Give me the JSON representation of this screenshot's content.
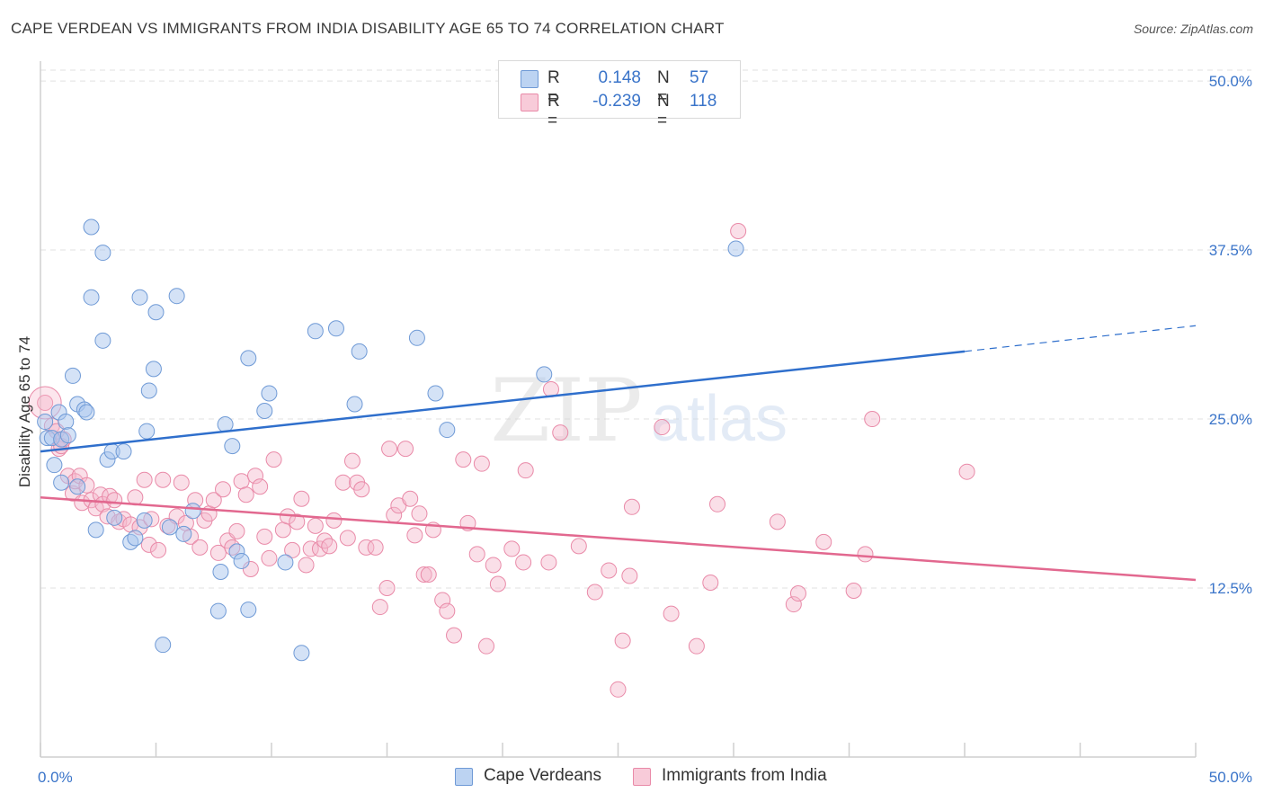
{
  "title": "CAPE VERDEAN VS IMMIGRANTS FROM INDIA DISABILITY AGE 65 TO 74 CORRELATION CHART",
  "source": "Source: ZipAtlas.com",
  "watermark": {
    "zip": "ZIP",
    "atlas": "atlas"
  },
  "colors": {
    "blue_fill": "#a9c6ee",
    "blue_stroke": "#6f9ad6",
    "blue_line": "#2f6fcc",
    "pink_fill": "#f5b8cb",
    "pink_stroke": "#e98aa8",
    "pink_line": "#e2688f",
    "tick_label": "#3a74c9",
    "grid": "#e0e0e0"
  },
  "legend": {
    "rows": [
      {
        "r_label": "R =",
        "r_value": "0.148",
        "n_label": "N =",
        "n_value": "57"
      },
      {
        "r_label": "R =",
        "r_value": "-0.239",
        "n_label": "N =",
        "n_value": "118"
      }
    ]
  },
  "bottom_legend": [
    "Cape Verdeans",
    "Immigrants from India"
  ],
  "chart_data": {
    "type": "scatter",
    "title": "CAPE VERDEAN VS IMMIGRANTS FROM INDIA DISABILITY AGE 65 TO 74 CORRELATION CHART",
    "xlabel": "",
    "ylabel": "Disability Age 65 to 74",
    "xlim": [
      0,
      50
    ],
    "ylim": [
      0,
      52
    ],
    "x_tick_labels": [
      {
        "value": 0,
        "label": "0.0%"
      },
      {
        "value": 50,
        "label": "50.0%"
      }
    ],
    "y_tick_labels": [
      {
        "value": 12.5,
        "label": "12.5%"
      },
      {
        "value": 25,
        "label": "25.0%"
      },
      {
        "value": 37.5,
        "label": "37.5%"
      },
      {
        "value": 50,
        "label": "50.0%"
      }
    ],
    "grid": true,
    "legend_position": "top-center",
    "series": [
      {
        "name": "Cape Verdeans",
        "color": "#a9c6ee",
        "trend": {
          "x0": 0,
          "y0": 22.6,
          "x1": 40,
          "y1": 30.0,
          "dashed_to_x": 50,
          "dashed_to_y": 31.9
        },
        "points": [
          [
            0.3,
            23.6
          ],
          [
            0.5,
            23.6
          ],
          [
            0.6,
            21.6
          ],
          [
            0.8,
            25.5
          ],
          [
            0.9,
            23.5
          ],
          [
            0.9,
            20.3
          ],
          [
            1.1,
            24.8
          ],
          [
            1.2,
            23.8
          ],
          [
            1.4,
            28.2
          ],
          [
            1.6,
            26.1
          ],
          [
            1.6,
            20.0
          ],
          [
            1.9,
            25.7
          ],
          [
            2.0,
            25.5
          ],
          [
            2.2,
            39.2
          ],
          [
            2.2,
            34.0
          ],
          [
            2.4,
            16.8
          ],
          [
            2.7,
            37.3
          ],
          [
            2.7,
            30.8
          ],
          [
            2.9,
            22.0
          ],
          [
            3.1,
            22.6
          ],
          [
            3.2,
            17.7
          ],
          [
            3.6,
            22.6
          ],
          [
            3.9,
            15.9
          ],
          [
            4.1,
            16.2
          ],
          [
            4.3,
            34.0
          ],
          [
            4.5,
            17.5
          ],
          [
            4.6,
            24.1
          ],
          [
            4.7,
            27.1
          ],
          [
            4.9,
            28.7
          ],
          [
            5.0,
            32.9
          ],
          [
            5.3,
            8.3
          ],
          [
            5.6,
            17.0
          ],
          [
            5.9,
            34.1
          ],
          [
            6.2,
            16.5
          ],
          [
            6.6,
            18.2
          ],
          [
            7.7,
            10.8
          ],
          [
            7.8,
            13.7
          ],
          [
            8.0,
            24.6
          ],
          [
            8.3,
            23.0
          ],
          [
            8.5,
            15.2
          ],
          [
            8.7,
            14.5
          ],
          [
            9.0,
            10.9
          ],
          [
            9.0,
            29.5
          ],
          [
            9.7,
            25.6
          ],
          [
            9.9,
            26.9
          ],
          [
            10.6,
            14.4
          ],
          [
            11.3,
            7.7
          ],
          [
            11.9,
            31.5
          ],
          [
            12.8,
            31.7
          ],
          [
            13.6,
            26.1
          ],
          [
            13.8,
            30.0
          ],
          [
            16.3,
            31.0
          ],
          [
            17.1,
            26.9
          ],
          [
            17.6,
            24.2
          ],
          [
            21.8,
            28.3
          ],
          [
            30.1,
            37.6
          ],
          [
            0.2,
            24.8
          ]
        ]
      },
      {
        "name": "Immigrants from India",
        "color": "#f5b8cb",
        "trend": {
          "x0": 0,
          "y0": 19.2,
          "x1": 50,
          "y1": 13.1
        },
        "points": [
          [
            0.2,
            26.2
          ],
          [
            0.5,
            24.5
          ],
          [
            0.7,
            24.1
          ],
          [
            0.8,
            22.8
          ],
          [
            0.9,
            23.0
          ],
          [
            1.0,
            23.5
          ],
          [
            1.2,
            20.8
          ],
          [
            1.4,
            19.5
          ],
          [
            1.5,
            20.4
          ],
          [
            1.7,
            20.8
          ],
          [
            1.8,
            18.8
          ],
          [
            2.0,
            20.1
          ],
          [
            2.2,
            19.0
          ],
          [
            2.4,
            18.4
          ],
          [
            2.6,
            19.4
          ],
          [
            2.7,
            18.7
          ],
          [
            2.9,
            17.8
          ],
          [
            3.0,
            19.3
          ],
          [
            3.2,
            19.0
          ],
          [
            3.4,
            17.4
          ],
          [
            3.6,
            17.6
          ],
          [
            3.9,
            17.2
          ],
          [
            4.1,
            19.2
          ],
          [
            4.3,
            17.0
          ],
          [
            4.5,
            20.5
          ],
          [
            4.7,
            15.7
          ],
          [
            4.8,
            17.6
          ],
          [
            5.1,
            15.3
          ],
          [
            5.3,
            20.5
          ],
          [
            5.5,
            17.1
          ],
          [
            5.9,
            17.8
          ],
          [
            6.1,
            20.3
          ],
          [
            6.3,
            17.3
          ],
          [
            6.5,
            16.3
          ],
          [
            6.7,
            19.0
          ],
          [
            6.9,
            15.5
          ],
          [
            7.1,
            17.5
          ],
          [
            7.3,
            18.0
          ],
          [
            7.5,
            19.0
          ],
          [
            7.7,
            15.1
          ],
          [
            7.9,
            19.8
          ],
          [
            8.1,
            16.0
          ],
          [
            8.3,
            15.5
          ],
          [
            8.5,
            16.7
          ],
          [
            8.7,
            20.4
          ],
          [
            8.9,
            19.4
          ],
          [
            9.1,
            13.9
          ],
          [
            9.3,
            20.8
          ],
          [
            9.5,
            20.0
          ],
          [
            9.7,
            16.3
          ],
          [
            9.9,
            14.7
          ],
          [
            10.1,
            22.0
          ],
          [
            10.5,
            16.8
          ],
          [
            10.7,
            17.8
          ],
          [
            10.9,
            15.3
          ],
          [
            11.1,
            17.4
          ],
          [
            11.3,
            19.1
          ],
          [
            11.5,
            14.2
          ],
          [
            11.7,
            15.4
          ],
          [
            11.9,
            17.1
          ],
          [
            12.1,
            15.4
          ],
          [
            12.3,
            16.0
          ],
          [
            12.5,
            15.6
          ],
          [
            12.7,
            17.5
          ],
          [
            13.1,
            20.3
          ],
          [
            13.3,
            16.2
          ],
          [
            13.5,
            21.9
          ],
          [
            13.7,
            20.3
          ],
          [
            13.9,
            19.8
          ],
          [
            14.1,
            15.5
          ],
          [
            14.5,
            15.5
          ],
          [
            14.7,
            11.1
          ],
          [
            15.0,
            12.5
          ],
          [
            15.1,
            22.8
          ],
          [
            15.3,
            17.9
          ],
          [
            15.5,
            18.6
          ],
          [
            15.8,
            22.8
          ],
          [
            16.0,
            19.1
          ],
          [
            16.2,
            16.4
          ],
          [
            16.4,
            18.0
          ],
          [
            16.6,
            13.5
          ],
          [
            16.8,
            13.5
          ],
          [
            17.0,
            16.8
          ],
          [
            17.4,
            11.6
          ],
          [
            17.6,
            10.8
          ],
          [
            17.9,
            9.0
          ],
          [
            18.3,
            22.0
          ],
          [
            18.5,
            17.3
          ],
          [
            18.9,
            15.0
          ],
          [
            19.1,
            21.7
          ],
          [
            19.3,
            8.2
          ],
          [
            19.6,
            14.2
          ],
          [
            19.8,
            12.8
          ],
          [
            20.4,
            15.4
          ],
          [
            20.9,
            14.4
          ],
          [
            21.0,
            21.2
          ],
          [
            22.0,
            14.4
          ],
          [
            22.1,
            27.2
          ],
          [
            22.5,
            24.0
          ],
          [
            23.3,
            15.6
          ],
          [
            24.0,
            12.2
          ],
          [
            24.6,
            13.8
          ],
          [
            25.0,
            5.0
          ],
          [
            25.2,
            8.6
          ],
          [
            25.5,
            13.4
          ],
          [
            25.6,
            18.5
          ],
          [
            26.9,
            24.4
          ],
          [
            27.3,
            10.6
          ],
          [
            28.4,
            8.2
          ],
          [
            29.0,
            12.9
          ],
          [
            29.3,
            18.7
          ],
          [
            30.2,
            38.9
          ],
          [
            31.9,
            17.4
          ],
          [
            32.6,
            11.3
          ],
          [
            32.8,
            12.1
          ],
          [
            33.9,
            15.9
          ],
          [
            35.2,
            12.3
          ],
          [
            35.7,
            15.0
          ],
          [
            36.0,
            25.0
          ],
          [
            40.1,
            21.1
          ]
        ]
      }
    ]
  }
}
